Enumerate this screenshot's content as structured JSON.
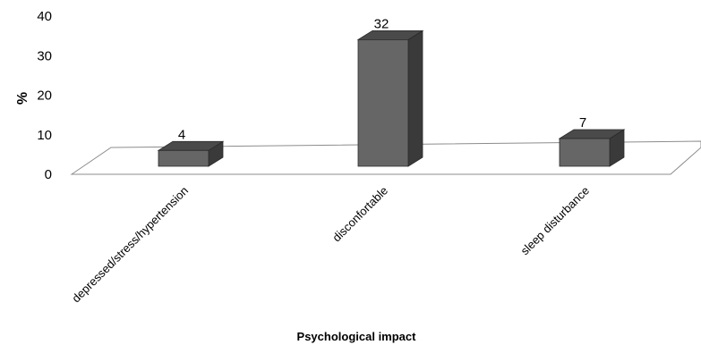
{
  "chart_data": {
    "type": "bar",
    "categories": [
      "depressed/stress/hypertension",
      "disconfortable",
      "sleep disturbance"
    ],
    "values": [
      4,
      32,
      7
    ],
    "data_labels": [
      "4",
      "32",
      "7"
    ],
    "xlabel": "Psychological impact",
    "ylabel": "%",
    "ylim": [
      0,
      40
    ],
    "yticks": [
      "0",
      "10",
      "20",
      "30",
      "40"
    ],
    "style": "3d",
    "grid": false,
    "bar_color": "#666666",
    "bar_top_color": "#4a4a4a",
    "bar_side_color": "#3a3a3a"
  }
}
